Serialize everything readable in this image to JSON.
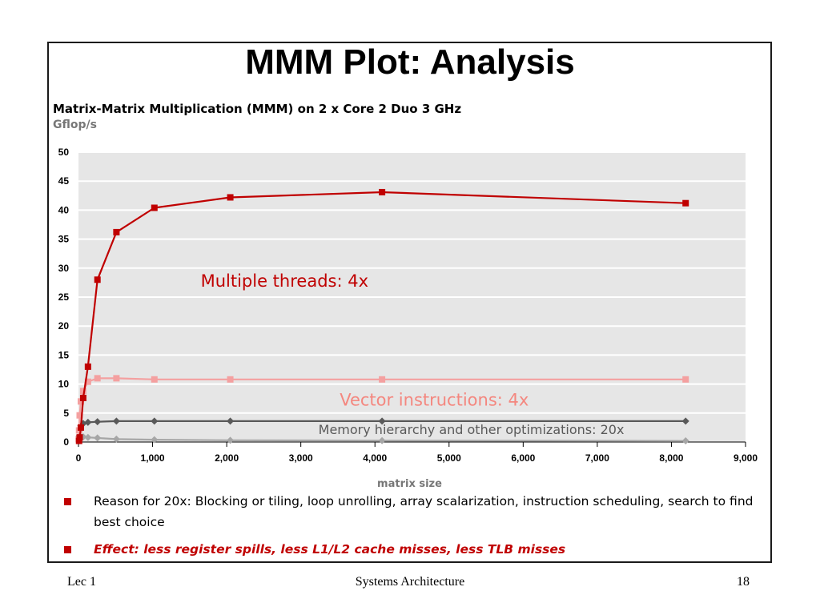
{
  "slide": {
    "title": "MMM Plot: Analysis",
    "footer_left": "Lec 1",
    "footer_center": "Systems Architecture",
    "footer_right": "18"
  },
  "bullets": [
    {
      "text": "Reason for 20x: Blocking or tiling, loop unrolling, array scalarization, instruction scheduling, search to find best choice",
      "style": "normal"
    },
    {
      "text": "Effect: less register spills, less L1/L2 cache misses, less TLB misses",
      "style": "emphasis"
    }
  ],
  "chart_data": {
    "type": "line",
    "title": "Matrix-Matrix Multiplication (MMM) on 2 x Core 2 Duo 3 GHz",
    "ylabel": "Gflop/s",
    "xlabel": "matrix size",
    "xlim": [
      0,
      9000
    ],
    "ylim": [
      0,
      50
    ],
    "xticks": [
      0,
      1000,
      2000,
      3000,
      4000,
      5000,
      6000,
      7000,
      8000,
      9000
    ],
    "xtick_labels": [
      "0",
      "1,000",
      "2,000",
      "3,000",
      "4,000",
      "5,000",
      "6,000",
      "7,000",
      "8,000",
      "9,000"
    ],
    "yticks": [
      0,
      5,
      10,
      15,
      20,
      25,
      30,
      35,
      40,
      45,
      50
    ],
    "grid": "horizontal",
    "background": "#e6e6e6",
    "legend": "none",
    "series": [
      {
        "color": "#c00000",
        "marker": "square",
        "x": [
          8,
          16,
          32,
          64,
          128,
          256,
          512,
          1024,
          2048,
          4096,
          8192
        ],
        "y": [
          0.2,
          0.8,
          2.5,
          7.6,
          13.0,
          28.0,
          36.2,
          40.4,
          42.2,
          43.1,
          41.2
        ]
      },
      {
        "color": "#f4a0a0",
        "marker": "square",
        "x": [
          4,
          8,
          16,
          32,
          64,
          128,
          256,
          512,
          1024,
          2048,
          4096,
          8192
        ],
        "y": [
          0.5,
          2.0,
          4.6,
          7.0,
          8.8,
          10.4,
          11.0,
          11.0,
          10.8,
          10.8,
          10.8,
          10.8
        ]
      },
      {
        "color": "#595959",
        "marker": "diamond",
        "x": [
          8,
          16,
          32,
          64,
          128,
          256,
          512,
          1024,
          2048,
          4096,
          8192
        ],
        "y": [
          1.0,
          2.0,
          2.8,
          3.2,
          3.4,
          3.5,
          3.6,
          3.6,
          3.6,
          3.6,
          3.6
        ]
      },
      {
        "color": "#a6a6a6",
        "marker": "diamond",
        "x": [
          8,
          16,
          32,
          64,
          128,
          256,
          512,
          1024,
          2048,
          4096,
          8192
        ],
        "y": [
          0.6,
          0.8,
          0.9,
          0.9,
          0.8,
          0.7,
          0.5,
          0.4,
          0.3,
          0.25,
          0.2
        ]
      }
    ],
    "annotations": [
      {
        "text": "Multiple threads: 4x",
        "color": "#c00000"
      },
      {
        "text": "Vector instructions: 4x",
        "color": "#f4877f"
      },
      {
        "text": "Memory hierarchy and other optimizations: 20x",
        "color": "#595959"
      }
    ]
  }
}
